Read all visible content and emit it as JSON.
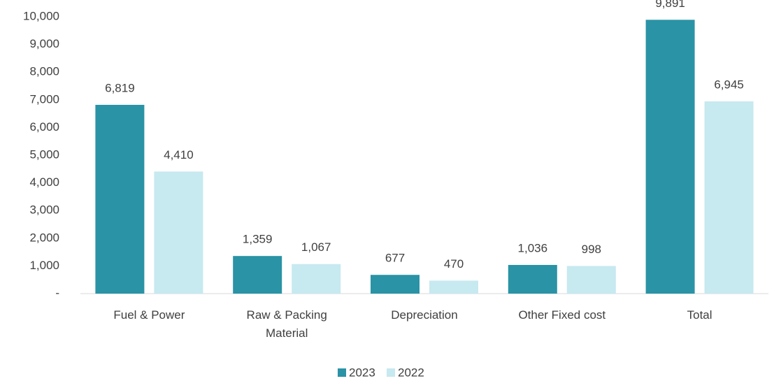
{
  "chart_data": {
    "type": "bar",
    "categories": [
      "Fuel & Power",
      "Raw & Packing Material",
      "Depreciation",
      "Other Fixed cost",
      "Total"
    ],
    "series": [
      {
        "name": "2023",
        "color": "#2a93a6",
        "values": [
          6819,
          1359,
          677,
          1036,
          9891
        ],
        "value_labels": [
          "6,819",
          "1,359",
          "677",
          "1,036",
          "9,891"
        ]
      },
      {
        "name": "2022",
        "color": "#c7e9f0",
        "values": [
          4410,
          1067,
          470,
          998,
          6945
        ],
        "value_labels": [
          "4,410",
          "1,067",
          "470",
          "998",
          "6,945"
        ]
      }
    ],
    "ylim": [
      0,
      10000
    ],
    "yticks": [
      {
        "value": 0,
        "label": "-"
      },
      {
        "value": 1000,
        "label": "1,000"
      },
      {
        "value": 2000,
        "label": "2,000"
      },
      {
        "value": 3000,
        "label": "3,000"
      },
      {
        "value": 4000,
        "label": "4,000"
      },
      {
        "value": 5000,
        "label": "5,000"
      },
      {
        "value": 6000,
        "label": "6,000"
      },
      {
        "value": 7000,
        "label": "7,000"
      },
      {
        "value": 8000,
        "label": "8,000"
      },
      {
        "value": 9000,
        "label": "9,000"
      },
      {
        "value": 10000,
        "label": "10,000"
      }
    ],
    "grid": false,
    "legend": "bottom"
  }
}
